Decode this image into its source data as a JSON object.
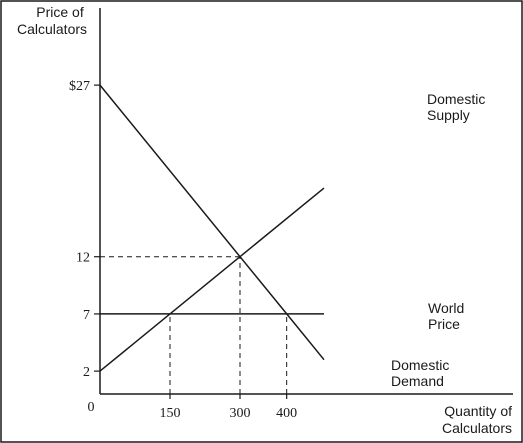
{
  "chart_data": {
    "type": "line",
    "title": "",
    "ylabel_lines": [
      "Price of",
      "Calculators"
    ],
    "xlabel_lines": [
      "Quantity of",
      "Calculators"
    ],
    "origin_label": "0",
    "xlim": [
      0,
      480
    ],
    "ylim": [
      0,
      31
    ],
    "grid": false,
    "legend": "none",
    "x_ticks": [
      {
        "value": 150,
        "label": "150"
      },
      {
        "value": 300,
        "label": "300"
      },
      {
        "value": 400,
        "label": "400"
      }
    ],
    "y_ticks": [
      {
        "value": 27,
        "label": "$27"
      },
      {
        "value": 12,
        "label": "12"
      },
      {
        "value": 7,
        "label": "7"
      },
      {
        "value": 2,
        "label": "2"
      }
    ],
    "series": [
      {
        "name_lines": [
          "Domestic",
          "Supply"
        ],
        "x": [
          0,
          300,
          480
        ],
        "y": [
          2,
          12,
          18
        ]
      },
      {
        "name_lines": [
          "Domestic",
          "Demand"
        ],
        "x": [
          0,
          300,
          400,
          480
        ],
        "y": [
          27,
          12,
          7,
          3
        ]
      },
      {
        "name_lines": [
          "World",
          "Price"
        ],
        "x": [
          0,
          480
        ],
        "y": [
          7,
          7
        ]
      }
    ],
    "guides": [
      {
        "x": [
          0,
          300
        ],
        "y": [
          12,
          12
        ]
      },
      {
        "x": [
          300,
          300
        ],
        "y": [
          0,
          12
        ]
      },
      {
        "x": [
          150,
          150
        ],
        "y": [
          0,
          7
        ]
      },
      {
        "x": [
          400,
          400
        ],
        "y": [
          0,
          7
        ]
      }
    ]
  }
}
